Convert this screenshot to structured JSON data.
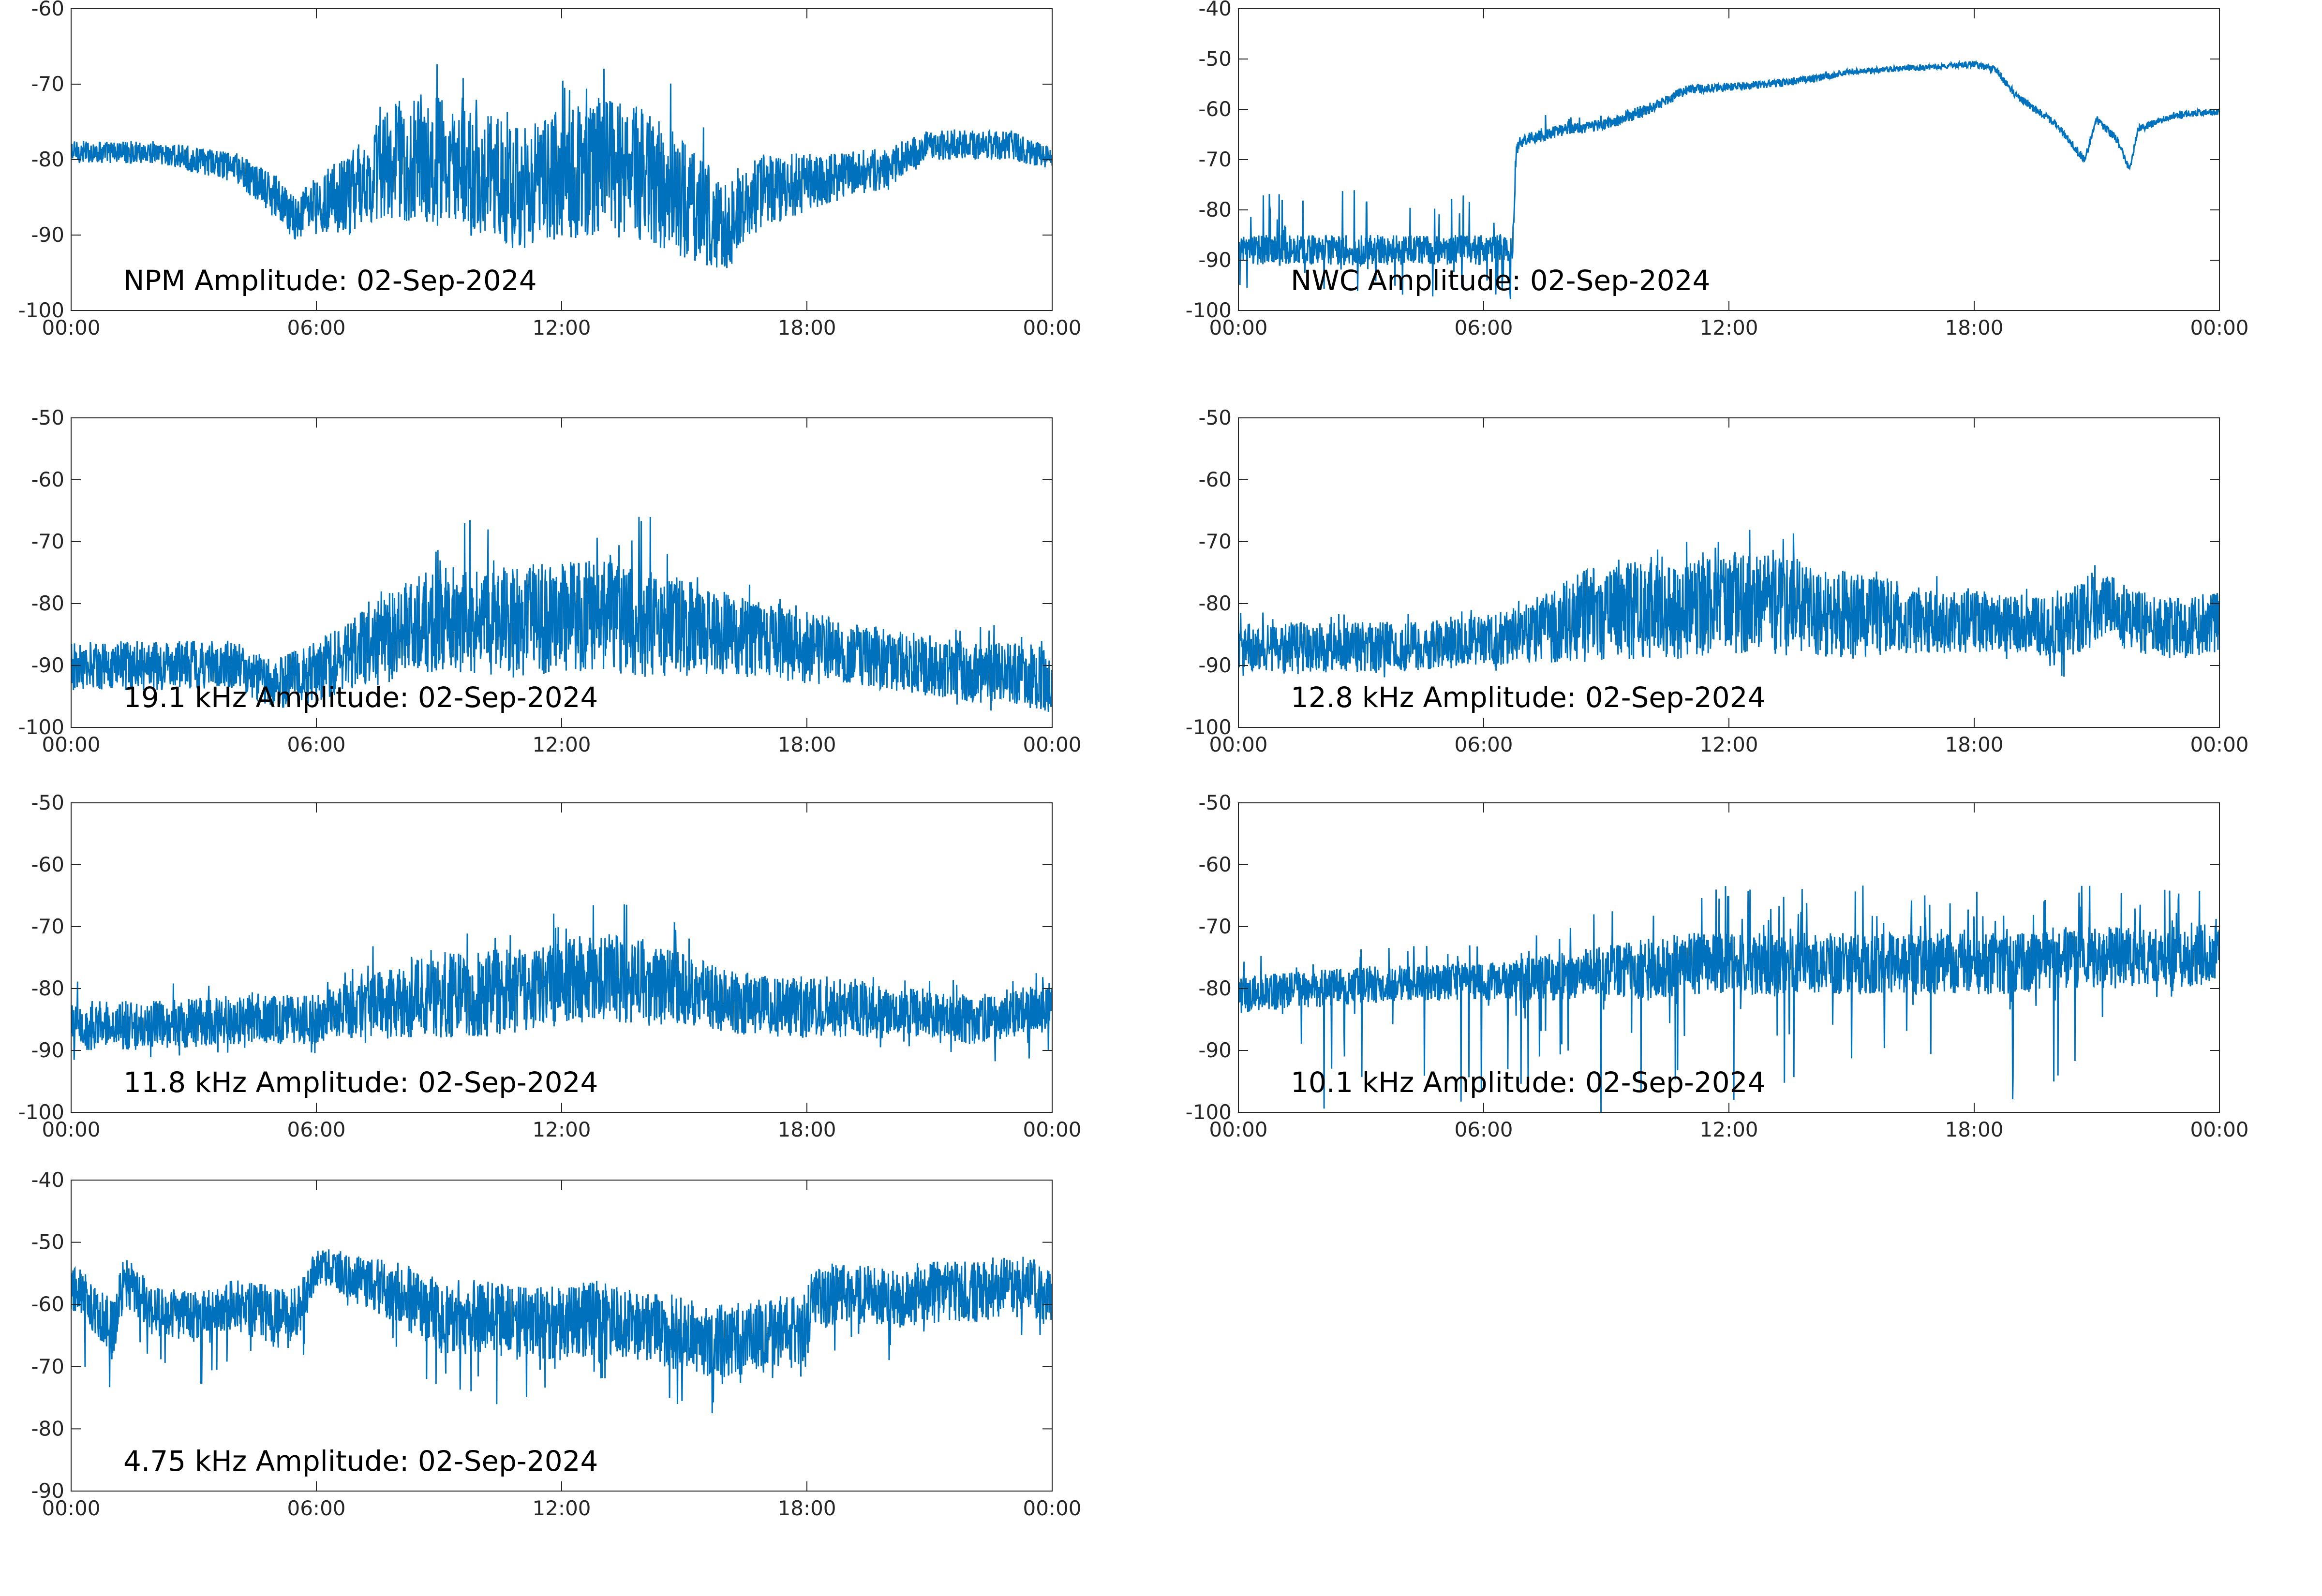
{
  "colors": {
    "series": "#0072bd",
    "axis": "#262626",
    "background": "#ffffff"
  },
  "chart_data": [
    {
      "type": "line",
      "title": "NPM Amplitude: 02-Sep-2024",
      "xlim": [
        0,
        24
      ],
      "ylim": [
        -100,
        -60
      ],
      "xticks": [
        "00:00",
        "06:00",
        "12:00",
        "18:00",
        "00:00"
      ],
      "yticks": [
        "-60",
        "-70",
        "-80",
        "-90",
        "-100"
      ],
      "grid": false,
      "envelope_x": [
        0,
        2,
        4,
        5,
        5.5,
        6,
        7,
        8,
        9,
        10,
        11,
        12,
        13,
        14,
        15,
        16,
        17,
        18,
        19,
        20,
        21,
        22,
        23,
        24
      ],
      "envelope_y": [
        -79,
        -79,
        -81,
        -85,
        -88,
        -86,
        -84,
        -80,
        -80,
        -82,
        -84,
        -82,
        -81,
        -82,
        -85,
        -89,
        -84,
        -83,
        -82,
        -81,
        -78,
        -78,
        -78,
        -80
      ],
      "envelope_spread": [
        1.5,
        1.5,
        2,
        3,
        3,
        4,
        6,
        8,
        9,
        9,
        8,
        9,
        9,
        9,
        8,
        6,
        5,
        4,
        3,
        3,
        2,
        2,
        2,
        1.5
      ],
      "spike_up_max": [
        0,
        0,
        0,
        0,
        0,
        2,
        6,
        12,
        13,
        12,
        10,
        13,
        14,
        15,
        14,
        8,
        6,
        3,
        1,
        1,
        1,
        1,
        0,
        0
      ],
      "spike_down_max": [
        0,
        0,
        0,
        0,
        2,
        3,
        4,
        6,
        7,
        8,
        7,
        8,
        9,
        9,
        9,
        6,
        5,
        3,
        2,
        1,
        0,
        0,
        0,
        0
      ]
    },
    {
      "type": "line",
      "title": "NWC Amplitude: 02-Sep-2024",
      "xlim": [
        0,
        24
      ],
      "ylim": [
        -100,
        -40
      ],
      "xticks": [
        "00:00",
        "06:00",
        "12:00",
        "18:00",
        "00:00"
      ],
      "yticks": [
        "-40",
        "-50",
        "-60",
        "-70",
        "-80",
        "-90",
        "-100"
      ],
      "grid": false,
      "envelope_x": [
        0,
        2,
        4,
        6,
        6.7,
        6.8,
        7,
        8,
        9,
        10,
        11,
        12,
        13,
        14,
        15,
        16,
        17,
        18,
        18.5,
        19,
        20,
        20.7,
        21,
        21.5,
        21.8,
        22,
        23,
        24
      ],
      "envelope_y": [
        -88,
        -88,
        -88,
        -88,
        -88,
        -68,
        -66,
        -64,
        -63,
        -60,
        -56,
        -55.5,
        -55,
        -54,
        -52.5,
        -52,
        -51.5,
        -51,
        -52,
        -57,
        -63,
        -70,
        -62,
        -66,
        -72,
        -64,
        -61,
        -60.5
      ],
      "envelope_spread": [
        3,
        3,
        3,
        3,
        3,
        1.2,
        1.2,
        1.2,
        1.2,
        1.2,
        1,
        0.8,
        0.8,
        0.8,
        0.6,
        0.6,
        0.6,
        0.6,
        0.8,
        0.8,
        0.8,
        0.8,
        0.8,
        0.8,
        0.8,
        0.8,
        0.8,
        0.6
      ],
      "spike_up_max": [
        12,
        12,
        12,
        12,
        12,
        0,
        4,
        4,
        2,
        1,
        0,
        0,
        0,
        0,
        0,
        0,
        0,
        0,
        0,
        0,
        0,
        0,
        0,
        0,
        0,
        0,
        0,
        0
      ],
      "spike_down_max": [
        12,
        12,
        12,
        12,
        14,
        30,
        0,
        0,
        0,
        0,
        0,
        0,
        0,
        0,
        0,
        0,
        0,
        0,
        0,
        0,
        0,
        0,
        0,
        0,
        0,
        0,
        0,
        0
      ]
    },
    {
      "type": "line",
      "title": "19.1 kHz Amplitude: 02-Sep-2024",
      "xlim": [
        0,
        24
      ],
      "ylim": [
        -100,
        -50
      ],
      "xticks": [
        "00:00",
        "06:00",
        "12:00",
        "18:00",
        "00:00"
      ],
      "yticks": [
        "-50",
        "-60",
        "-70",
        "-80",
        "-90",
        "-100"
      ],
      "grid": false,
      "envelope_x": [
        0,
        2,
        4,
        5,
        6,
        7,
        8,
        9,
        10,
        11,
        12,
        13,
        14,
        15,
        16,
        17,
        18,
        19,
        20,
        21,
        22,
        23,
        24
      ],
      "envelope_y": [
        -90,
        -90,
        -90,
        -93,
        -91,
        -88,
        -85,
        -82,
        -83,
        -83,
        -82,
        -82,
        -83,
        -84,
        -85,
        -86,
        -87,
        -88,
        -89,
        -90,
        -91,
        -91,
        -92
      ],
      "envelope_spread": [
        4,
        4,
        4,
        4,
        5,
        6,
        8,
        9,
        9,
        9,
        9,
        9,
        9,
        8,
        7,
        6,
        6,
        5,
        5,
        5,
        5,
        5,
        6
      ],
      "spike_up_max": [
        3,
        3,
        3,
        3,
        4,
        6,
        12,
        18,
        16,
        14,
        14,
        16,
        18,
        14,
        10,
        8,
        6,
        5,
        4,
        4,
        8,
        8,
        8
      ],
      "spike_down_max": [
        4,
        4,
        4,
        5,
        6,
        6,
        6,
        8,
        8,
        6,
        6,
        6,
        6,
        6,
        6,
        6,
        6,
        5,
        5,
        6,
        8,
        8,
        8
      ]
    },
    {
      "type": "line",
      "title": "12.8 kHz Amplitude: 02-Sep-2024",
      "xlim": [
        0,
        24
      ],
      "ylim": [
        -100,
        -50
      ],
      "xticks": [
        "00:00",
        "06:00",
        "12:00",
        "18:00",
        "00:00"
      ],
      "yticks": [
        "-50",
        "-60",
        "-70",
        "-80",
        "-90",
        "-100"
      ],
      "grid": false,
      "envelope_x": [
        0,
        2,
        4,
        6,
        7,
        8,
        9,
        10,
        11,
        12,
        13,
        14,
        15,
        16,
        17,
        18,
        19,
        20,
        20.7,
        21,
        22,
        23,
        24
      ],
      "envelope_y": [
        -87,
        -87,
        -87,
        -86,
        -85,
        -83,
        -81,
        -81,
        -81,
        -80,
        -80,
        -81,
        -82,
        -82,
        -83,
        -83,
        -83,
        -84,
        -82,
        -80,
        -83,
        -84,
        -83
      ],
      "envelope_spread": [
        4,
        4,
        4,
        4,
        5,
        7,
        8,
        8,
        8,
        8,
        8,
        8,
        7,
        6,
        5,
        5,
        5,
        5,
        6,
        6,
        5,
        5,
        5
      ],
      "spike_up_max": [
        8,
        6,
        6,
        6,
        6,
        10,
        16,
        14,
        12,
        14,
        14,
        16,
        12,
        10,
        8,
        6,
        6,
        6,
        8,
        8,
        6,
        6,
        8
      ],
      "spike_down_max": [
        5,
        5,
        6,
        6,
        6,
        6,
        6,
        6,
        6,
        6,
        6,
        6,
        6,
        6,
        6,
        6,
        6,
        8,
        12,
        10,
        6,
        6,
        8
      ]
    },
    {
      "type": "line",
      "title": "11.8 kHz Amplitude: 02-Sep-2024",
      "xlim": [
        0,
        24
      ],
      "ylim": [
        -100,
        -50
      ],
      "xticks": [
        "00:00",
        "06:00",
        "12:00",
        "18:00",
        "00:00"
      ],
      "yticks": [
        "-50",
        "-60",
        "-70",
        "-80",
        "-90",
        "-100"
      ],
      "grid": false,
      "envelope_x": [
        0,
        2,
        4,
        6,
        7,
        8,
        9,
        10,
        11,
        12,
        13,
        14,
        15,
        16,
        17,
        18,
        19,
        20,
        21,
        22,
        23,
        24
      ],
      "envelope_y": [
        -86,
        -86,
        -85,
        -85,
        -83,
        -82,
        -81,
        -81,
        -80,
        -79,
        -78,
        -79,
        -80,
        -82,
        -83,
        -83,
        -83,
        -84,
        -84,
        -85,
        -84,
        -83
      ],
      "envelope_spread": [
        4,
        4,
        4,
        4,
        5,
        6,
        7,
        7,
        7,
        7,
        7,
        7,
        6,
        5,
        5,
        5,
        5,
        4,
        4,
        4,
        4,
        4
      ],
      "spike_up_max": [
        8,
        8,
        6,
        6,
        8,
        12,
        14,
        14,
        12,
        12,
        14,
        12,
        10,
        8,
        6,
        6,
        6,
        6,
        6,
        6,
        6,
        6
      ],
      "spike_down_max": [
        6,
        6,
        6,
        6,
        6,
        6,
        6,
        6,
        6,
        6,
        6,
        6,
        6,
        6,
        6,
        6,
        6,
        6,
        6,
        8,
        8,
        8
      ]
    },
    {
      "type": "line",
      "title": "10.1 kHz Amplitude: 02-Sep-2024",
      "xlim": [
        0,
        24
      ],
      "ylim": [
        -100,
        -50
      ],
      "xticks": [
        "00:00",
        "06:00",
        "12:00",
        "18:00",
        "00:00"
      ],
      "yticks": [
        "-50",
        "-60",
        "-70",
        "-80",
        "-90",
        "-100"
      ],
      "grid": false,
      "envelope_x": [
        0,
        2,
        4,
        6,
        8,
        9,
        10,
        11,
        12,
        13,
        14,
        15,
        16,
        17,
        18,
        19,
        20,
        21,
        22,
        23,
        24
      ],
      "envelope_y": [
        -81,
        -80,
        -79,
        -79,
        -78,
        -77,
        -77,
        -76,
        -76,
        -76,
        -76,
        -76,
        -76,
        -76,
        -76,
        -76,
        -75,
        -75,
        -75,
        -75,
        -74
      ],
      "envelope_spread": [
        3,
        3,
        3,
        3,
        4,
        4,
        5,
        5,
        5,
        5,
        5,
        5,
        5,
        5,
        5,
        5,
        5,
        5,
        5,
        5,
        5
      ],
      "spike_up_max": [
        6,
        6,
        6,
        6,
        8,
        10,
        12,
        12,
        13,
        13,
        13,
        13,
        13,
        13,
        13,
        12,
        12,
        13,
        12,
        11,
        11
      ],
      "spike_down_max": [
        0,
        20,
        20,
        20,
        20,
        24,
        24,
        24,
        24,
        24,
        24,
        24,
        24,
        24,
        24,
        24,
        24,
        10,
        10,
        6,
        6
      ]
    },
    {
      "type": "line",
      "title": "4.75 kHz Amplitude: 02-Sep-2024",
      "xlim": [
        0,
        24
      ],
      "ylim": [
        -90,
        -40
      ],
      "xticks": [
        "00:00",
        "06:00",
        "12:00",
        "18:00",
        "00:00"
      ],
      "yticks": [
        "-40",
        "-50",
        "-60",
        "-70",
        "-80",
        "-90"
      ],
      "grid": false,
      "envelope_x": [
        0,
        0.5,
        1,
        1.3,
        2,
        3,
        4,
        5,
        5.5,
        6,
        6.3,
        7,
        8,
        9,
        10,
        11,
        12,
        13,
        14,
        15,
        16,
        17,
        18,
        18.1,
        19,
        20,
        21,
        22,
        23,
        24
      ],
      "envelope_y": [
        -57,
        -60,
        -64,
        -56,
        -61,
        -62,
        -60,
        -62,
        -62,
        -54,
        -54,
        -56,
        -58,
        -62,
        -62,
        -63,
        -63,
        -62,
        -63,
        -65,
        -66,
        -65,
        -64,
        -59,
        -58,
        -59,
        -58,
        -58,
        -57,
        -58
      ],
      "envelope_spread": [
        4,
        4,
        5,
        4,
        4,
        4,
        4,
        5,
        5,
        3,
        3,
        4,
        5,
        6,
        6,
        6,
        6,
        6,
        6,
        6,
        6,
        6,
        6,
        5,
        5,
        5,
        5,
        5,
        5,
        5
      ],
      "spike_up_max": [
        2,
        2,
        2,
        2,
        2,
        2,
        2,
        2,
        2,
        2,
        2,
        2,
        2,
        2,
        2,
        2,
        2,
        2,
        2,
        2,
        2,
        2,
        2,
        2,
        2,
        2,
        2,
        2,
        2,
        2
      ],
      "spike_down_max": [
        8,
        16,
        10,
        6,
        10,
        12,
        10,
        14,
        12,
        6,
        6,
        6,
        10,
        14,
        14,
        14,
        12,
        12,
        12,
        12,
        12,
        12,
        12,
        8,
        10,
        10,
        8,
        8,
        8,
        8
      ]
    }
  ]
}
